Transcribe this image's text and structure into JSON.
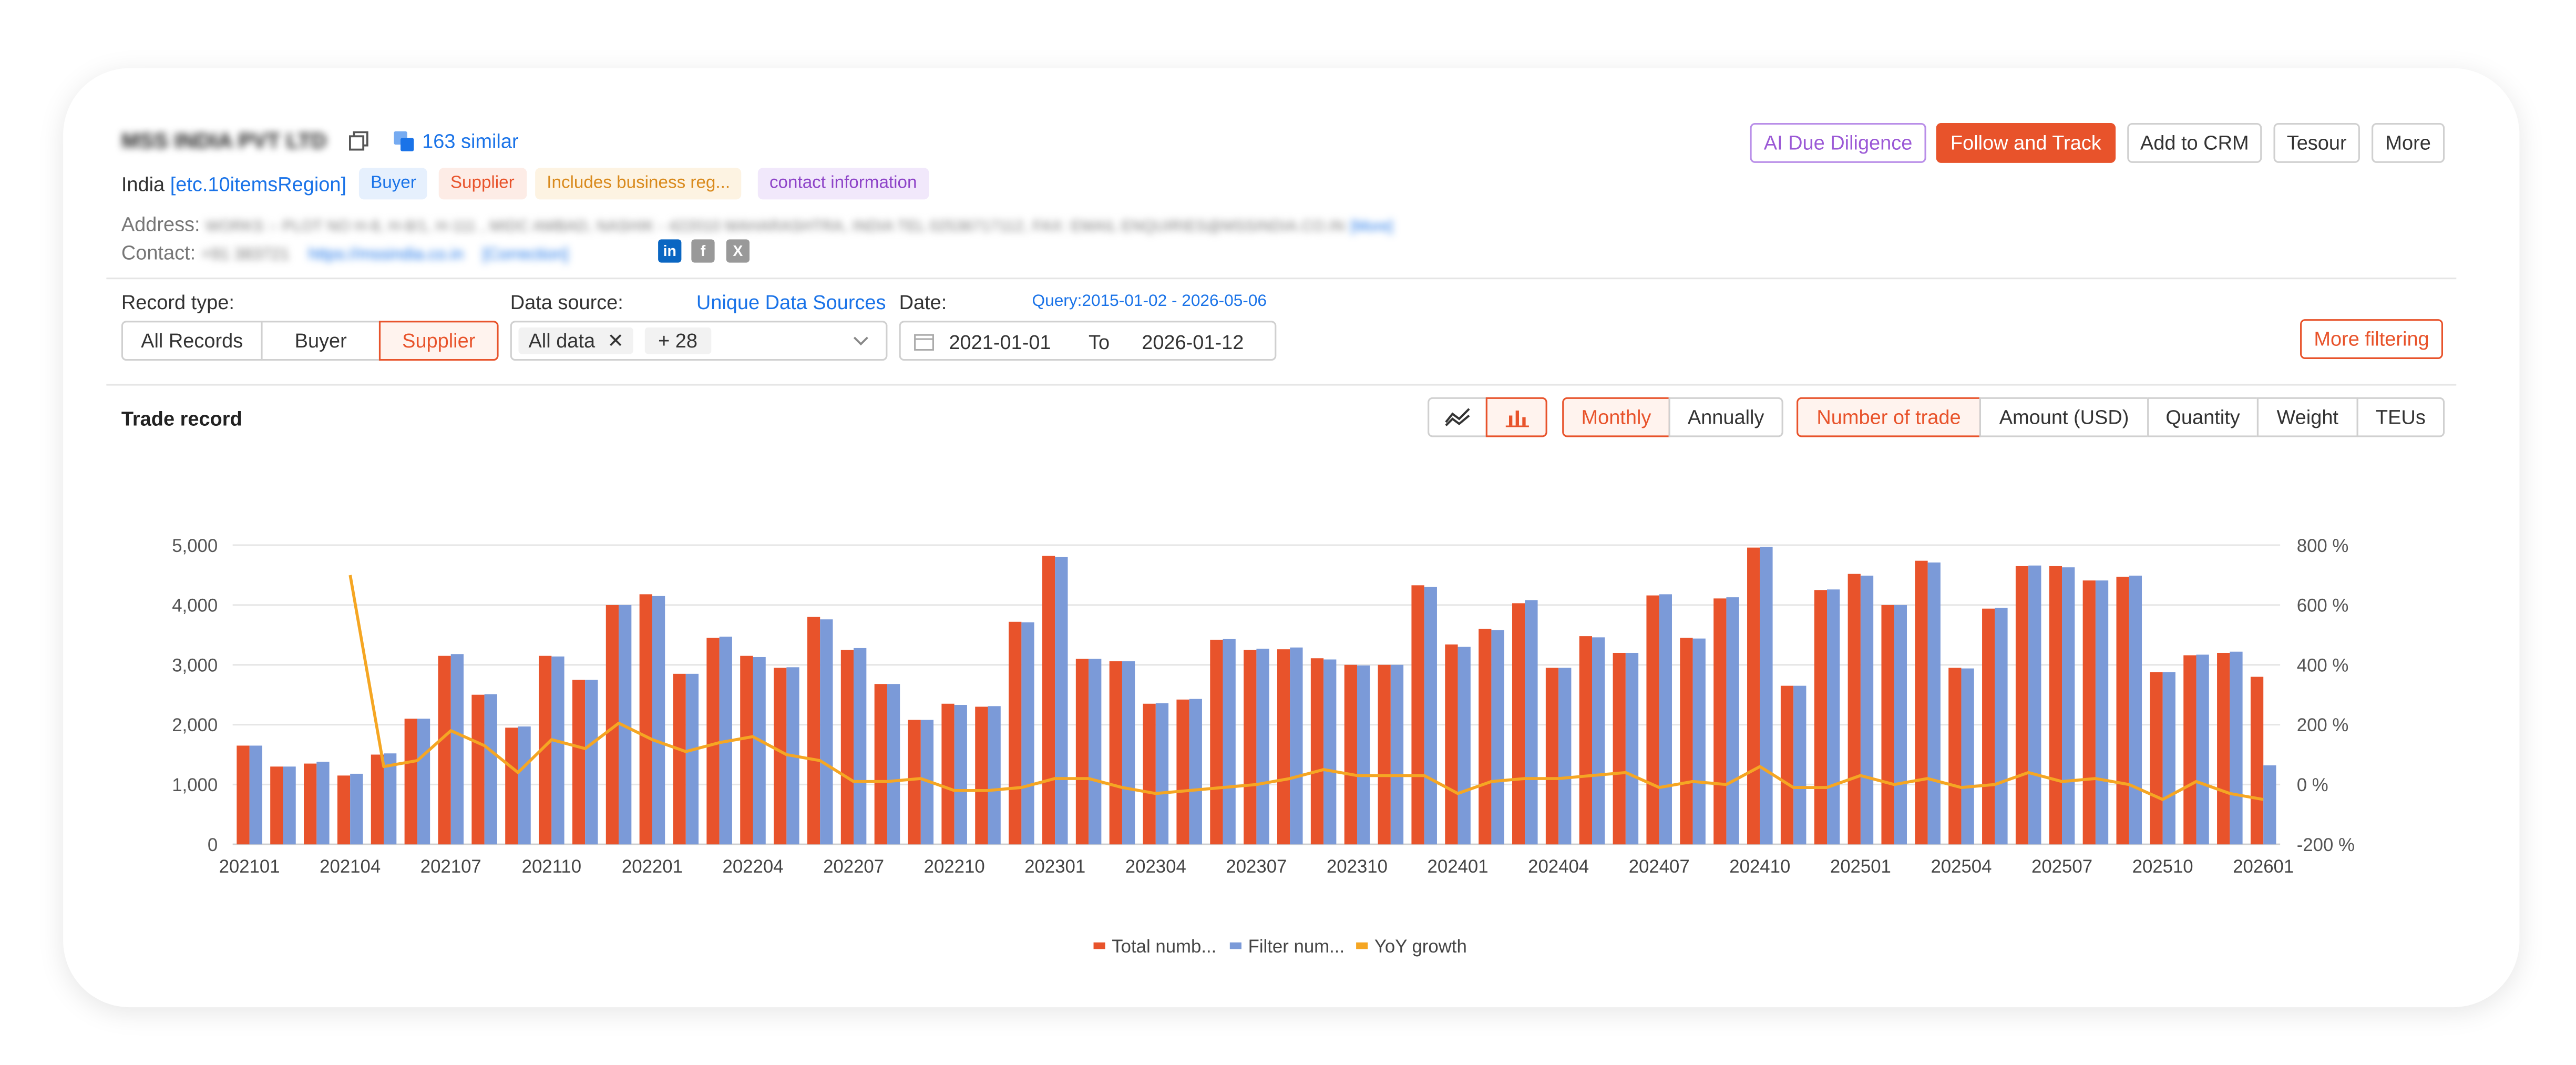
{
  "header": {
    "company_name": "MSS INDIA PVT LTD",
    "similar_label": "163 similar",
    "country": "India",
    "region_label": "[etc.10itemsRegion]",
    "tags": [
      "Buyer",
      "Supplier",
      "Includes business reg...",
      "contact information"
    ],
    "address_label": "Address:",
    "address_value": "WORKS :- PLOT NO H-8, H-8/1, H-111 , MIDC AMBAD, NASHIK - 422010 MAHARASHTRA, INDIA TEL 02536717112, FAX: EMAIL ENQUIRIES@MSSINDIA.CO.IN",
    "address_more": "[More]",
    "contact_label": "Contact:",
    "contact_phone": "+91 383721",
    "contact_web": "https://mssindia.co.in",
    "contact_correction": "[Correction]",
    "socials": [
      {
        "name": "linkedin",
        "glyph": "in",
        "color": "#0a66c2"
      },
      {
        "name": "facebook",
        "glyph": "f",
        "color": "#999999"
      },
      {
        "name": "x",
        "glyph": "X",
        "color": "#999999"
      }
    ]
  },
  "actions": {
    "due_diligence": "AI Due Diligence",
    "follow": "Follow and Track",
    "crm": "Add to CRM",
    "tesour": "Tesour",
    "more": "More"
  },
  "filters": {
    "record_type_label": "Record type:",
    "record_types": [
      "All Records",
      "Buyer",
      "Supplier"
    ],
    "record_type_selected": "Supplier",
    "data_source_label": "Data source:",
    "unique_sources_link": "Unique Data Sources",
    "data_source_value": "All data",
    "data_source_extra": "+ 28",
    "date_label": "Date:",
    "query_range": "Query:2015-01-02 - 2026-05-06",
    "date_from": "2021-01-01",
    "date_to_label": "To",
    "date_to": "2026-01-12",
    "more_filtering": "More filtering"
  },
  "trade": {
    "title": "Trade record",
    "periods": [
      "Monthly",
      "Annually"
    ],
    "period_selected": "Monthly",
    "metrics": [
      "Number of trade",
      "Amount (USD)",
      "Quantity",
      "Weight",
      "TEUs"
    ],
    "metric_selected": "Number of trade"
  },
  "colors": {
    "accent": "#e8532b",
    "bar_total": "#e8532b",
    "bar_filter": "#7b9ad8",
    "line_yoy": "#f5a623",
    "link": "#1a73e8"
  },
  "chart_data": {
    "type": "bar",
    "x": [
      "202101",
      "202102",
      "202103",
      "202104",
      "202105",
      "202106",
      "202107",
      "202108",
      "202109",
      "202110",
      "202111",
      "202112",
      "202201",
      "202202",
      "202203",
      "202204",
      "202205",
      "202206",
      "202207",
      "202208",
      "202209",
      "202210",
      "202211",
      "202212",
      "202301",
      "202302",
      "202303",
      "202304",
      "202305",
      "202306",
      "202307",
      "202308",
      "202309",
      "202310",
      "202311",
      "202312",
      "202401",
      "202402",
      "202403",
      "202404",
      "202405",
      "202406",
      "202407",
      "202408",
      "202409",
      "202410",
      "202411",
      "202412",
      "202501",
      "202502",
      "202503",
      "202504",
      "202505",
      "202506",
      "202507",
      "202508",
      "202509",
      "202510",
      "202511",
      "202512",
      "202601"
    ],
    "xtick_labels": [
      "202101",
      "202104",
      "202107",
      "202110",
      "202201",
      "202204",
      "202207",
      "202210",
      "202301",
      "202304",
      "202307",
      "202310",
      "202401",
      "202404",
      "202407",
      "202410",
      "202501",
      "202504",
      "202507",
      "202510",
      "202601"
    ],
    "series": [
      {
        "name": "Total numb...",
        "axis": "left",
        "values": [
          1650,
          1300,
          1350,
          1150,
          1500,
          2100,
          3150,
          2500,
          1950,
          3150,
          2750,
          4000,
          4180,
          2850,
          3450,
          3150,
          2950,
          3800,
          3250,
          2680,
          2080,
          2350,
          2300,
          3720,
          4820,
          3100,
          3060,
          2350,
          2420,
          3420,
          3250,
          3260,
          3110,
          3000,
          3000,
          4330,
          3340,
          3600,
          4030,
          2950,
          3480,
          3200,
          4160,
          3450,
          4110,
          4960,
          2650,
          4250,
          4520,
          4000,
          4740,
          2950,
          3940,
          4650,
          4650,
          4410,
          4470,
          2880,
          3160,
          3200,
          2800
        ]
      },
      {
        "name": "Filter num...",
        "axis": "left",
        "values": [
          1650,
          1300,
          1380,
          1180,
          1520,
          2100,
          3180,
          2510,
          1970,
          3140,
          2750,
          4000,
          4150,
          2850,
          3470,
          3130,
          2960,
          3760,
          3280,
          2680,
          2080,
          2330,
          2310,
          3710,
          4800,
          3100,
          3060,
          2360,
          2430,
          3430,
          3270,
          3290,
          3090,
          2990,
          3000,
          4300,
          3300,
          3580,
          4080,
          2950,
          3460,
          3200,
          4180,
          3440,
          4130,
          4970,
          2650,
          4260,
          4490,
          4000,
          4710,
          2940,
          3950,
          4660,
          4630,
          4410,
          4490,
          2880,
          3170,
          3220,
          1320
        ]
      },
      {
        "name": "YoY growth",
        "axis": "right",
        "values": [
          null,
          null,
          null,
          700,
          60,
          80,
          180,
          130,
          40,
          150,
          120,
          205,
          150,
          110,
          140,
          160,
          100,
          80,
          10,
          10,
          20,
          -20,
          -20,
          -10,
          20,
          20,
          -10,
          -30,
          -20,
          -10,
          0,
          20,
          50,
          30,
          30,
          30,
          -30,
          10,
          20,
          20,
          30,
          40,
          -10,
          10,
          0,
          60,
          -10,
          -10,
          30,
          0,
          20,
          -10,
          0,
          40,
          10,
          20,
          0,
          -50,
          10,
          -30,
          -50
        ]
      }
    ],
    "left_axis": {
      "min": 0,
      "max": 5000,
      "ticks": [
        "0",
        "1,000",
        "2,000",
        "3,000",
        "4,000",
        "5,000"
      ]
    },
    "right_axis": {
      "min": -200,
      "max": 800,
      "ticks": [
        "-200 %",
        "0 %",
        "200 %",
        "400 %",
        "600 %",
        "800 %"
      ]
    },
    "grid": true,
    "legend_position": "bottom-center"
  }
}
